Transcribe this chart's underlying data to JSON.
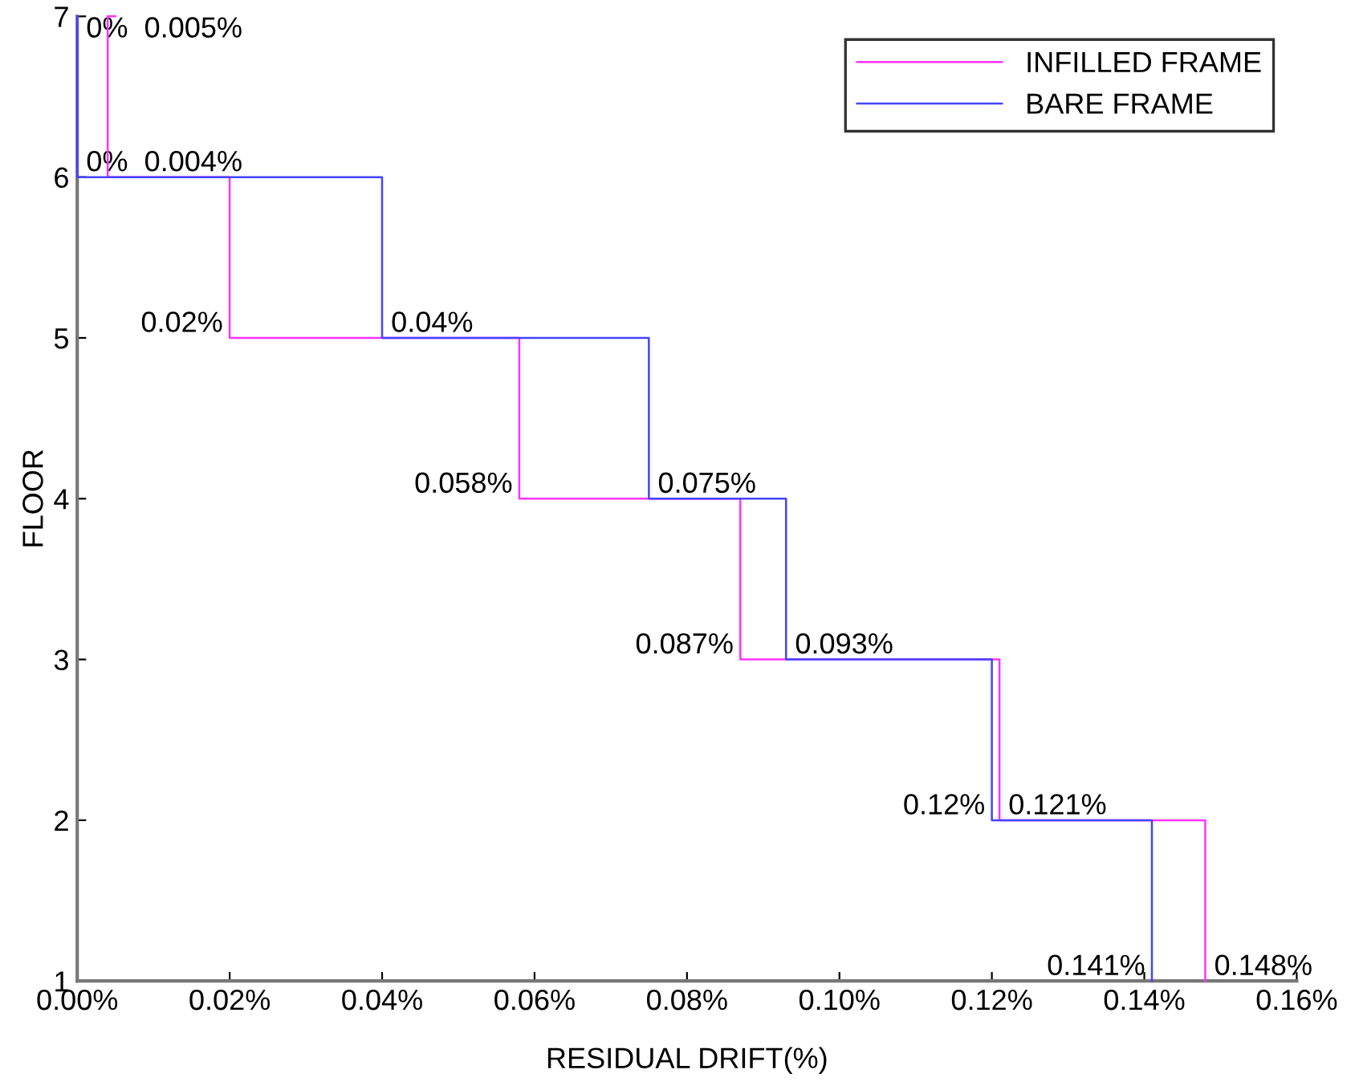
{
  "chart_data": {
    "type": "step",
    "orientation": "horizontal",
    "xlabel": "RESIDUAL DRIFT(%)",
    "ylabel": "FLOOR",
    "x": [
      1,
      2,
      3,
      4,
      5,
      6,
      7
    ],
    "series": [
      {
        "name": "INFILLED FRAME",
        "color": "#ff33ff",
        "values": [
          0.148,
          0.121,
          0.087,
          0.058,
          0.02,
          0.004,
          0.005
        ],
        "value_labels": [
          "0.148%",
          "0.121%",
          "0.087%",
          "0.058%",
          "0.02%",
          "0.004%",
          "0.005%"
        ]
      },
      {
        "name": "BARE FRAME",
        "color": "#4444ff",
        "values": [
          0.141,
          0.12,
          0.093,
          0.075,
          0.04,
          0,
          0
        ],
        "value_labels": [
          "0.141%",
          "0.12%",
          "0.093%",
          "0.075%",
          "0.04%",
          "0%",
          "0%"
        ]
      }
    ],
    "xlim": [
      0,
      0.16
    ],
    "xticks": [
      {
        "value": 0,
        "label": "0.00%"
      },
      {
        "value": 0.02,
        "label": "0.02%"
      },
      {
        "value": 0.04,
        "label": "0.04%"
      },
      {
        "value": 0.06,
        "label": "0.06%"
      },
      {
        "value": 0.08,
        "label": "0.08%"
      },
      {
        "value": 0.1,
        "label": "0.10%"
      },
      {
        "value": 0.12,
        "label": "0.12%"
      },
      {
        "value": 0.14,
        "label": "0.14%"
      },
      {
        "value": 0.16,
        "label": "0.16%"
      }
    ],
    "ylim": [
      1,
      7
    ],
    "yticks": [
      1,
      2,
      3,
      4,
      5,
      6,
      7
    ],
    "grid": false,
    "legend": "top right",
    "line_style": "solid"
  }
}
